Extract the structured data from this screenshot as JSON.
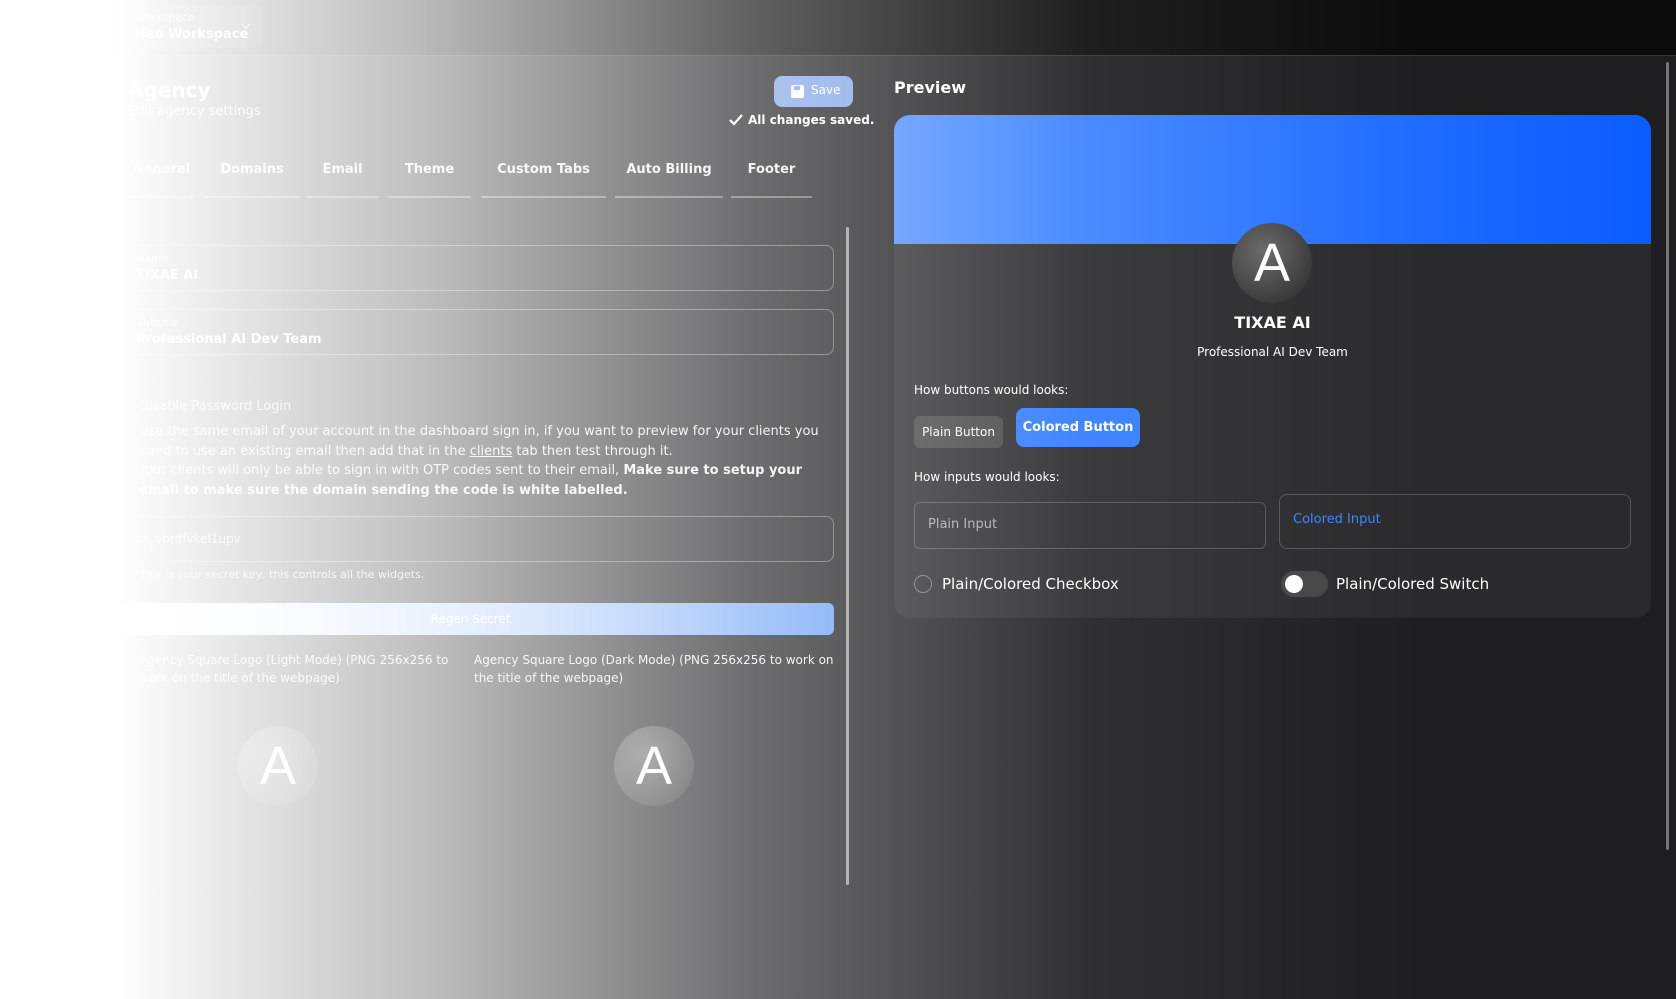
{
  "header": {
    "workspace_label": "Workspace",
    "workspace_name": "Neo Workspace"
  },
  "settings": {
    "title": "Agency",
    "subtitle": "Edit agency settings",
    "save": "Save",
    "status": "All changes saved.",
    "tabs": [
      "General",
      "Domains",
      "Email",
      "Theme",
      "Custom Tabs",
      "Auto Billing",
      "Footer"
    ],
    "fields": [
      {
        "label": "Name",
        "value": "TIXAE AI"
      },
      {
        "label": "Subtitle",
        "value": "Professional AI Dev Team"
      }
    ],
    "password_login": {
      "title": "Disable Password Login",
      "line1_start": "Use the same email of your account in the dashboard sign in, if you want to preview for your clients you need to use an existing email then add that in the ",
      "line1_link": "clients",
      "line1_end": " tab then test through it.",
      "line2_start": "Your clients will only be able to sign in with OTP codes sent to their email, ",
      "line2_bold": "Make sure to setup your email to make sure the domain sending the code is white labelled."
    },
    "secret": {
      "value": "sk_vbrdfvkel1upv",
      "hint": "This is your secret key, this controls all the widgets."
    },
    "regen": "Regen Secret",
    "logos": [
      "Agency Square Logo (Light Mode) (PNG 256x256 to work on the title of the webpage)",
      "Agency Square Logo (Dark Mode) (PNG 256x256 to work on the title of the webpage)"
    ],
    "logo_letter": "A"
  },
  "preview": {
    "title": "Preview",
    "name": "TIXAE AI",
    "subtitle": "Professional AI Dev Team",
    "buttons_label": "How buttons would looks:",
    "plain_button": "Plain Button",
    "colored_button": "Colored Button",
    "inputs_label": "How inputs would looks:",
    "plain_input": "Plain Input",
    "colored_input": "Colored Input",
    "checkbox": "Plain/Colored Checkbox",
    "switch": "Plain/Colored Switch"
  }
}
